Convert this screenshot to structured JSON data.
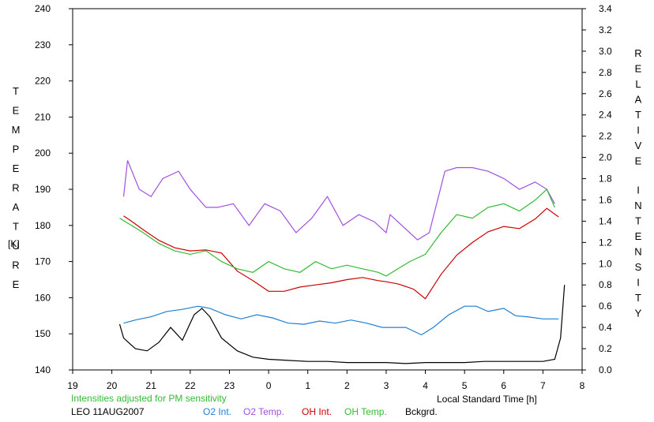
{
  "chart_data": {
    "type": "line",
    "left_axis_label": "TEMPERATURE",
    "left_axis_unit": "[K]",
    "right_axis_label": "RELATIVE INTENSITY",
    "xlabel": "Local Standard Time [h]",
    "note": "Intensities adjusted for PM sensitivity",
    "station_label": "LEO 11AUG2007",
    "xlim": [
      19,
      8
    ],
    "ylim_left": [
      140,
      240
    ],
    "ylim_right": [
      0.0,
      3.4
    ],
    "x_ticks": [
      "19",
      "20",
      "21",
      "22",
      "23",
      "0",
      "1",
      "2",
      "3",
      "4",
      "5",
      "6",
      "7",
      "8"
    ],
    "y_left_ticks": [
      "140",
      "150",
      "160",
      "170",
      "180",
      "190",
      "200",
      "210",
      "220",
      "230",
      "240"
    ],
    "y_right_ticks": [
      "0.0",
      "0.2",
      "0.4",
      "0.6",
      "0.8",
      "1.0",
      "1.2",
      "1.4",
      "1.6",
      "1.8",
      "2.0",
      "2.2",
      "2.4",
      "2.6",
      "2.8",
      "3.0",
      "3.2",
      "3.4"
    ],
    "series": [
      {
        "name": "O2 Int.",
        "axis": "right",
        "color": "#1f7fd4",
        "x": [
          20.3,
          20.6,
          21.0,
          21.4,
          21.8,
          22.2,
          22.5,
          22.9,
          23.3,
          23.7,
          24.1,
          24.5,
          24.9,
          25.3,
          25.7,
          26.1,
          26.5,
          26.9,
          27.1,
          27.5,
          27.9,
          28.2,
          28.6,
          29.0,
          29.3,
          29.6,
          30.0,
          30.3,
          30.6,
          31.0,
          31.4
        ],
        "y": [
          0.44,
          0.47,
          0.5,
          0.55,
          0.57,
          0.6,
          0.58,
          0.52,
          0.48,
          0.52,
          0.49,
          0.44,
          0.43,
          0.46,
          0.44,
          0.47,
          0.44,
          0.4,
          0.4,
          0.4,
          0.33,
          0.4,
          0.52,
          0.6,
          0.6,
          0.55,
          0.58,
          0.51,
          0.5,
          0.48,
          0.48
        ]
      },
      {
        "name": "O2 Temp.",
        "axis": "left",
        "color": "#a050e0",
        "x": [
          20.3,
          20.4,
          20.7,
          21.0,
          21.3,
          21.7,
          22.0,
          22.4,
          22.7,
          23.1,
          23.5,
          23.9,
          24.3,
          24.7,
          25.1,
          25.5,
          25.9,
          26.3,
          26.7,
          27.0,
          27.1,
          27.4,
          27.8,
          28.1,
          28.5,
          28.8,
          29.2,
          29.6,
          30.0,
          30.4,
          30.8,
          31.1,
          31.3
        ],
        "y": [
          188,
          198,
          190,
          188,
          193,
          195,
          190,
          185,
          185,
          186,
          180,
          186,
          184,
          178,
          182,
          188,
          180,
          183,
          181,
          178,
          183,
          180,
          176,
          178,
          195,
          196,
          196,
          195,
          193,
          190,
          192,
          190,
          186
        ]
      },
      {
        "name": "OH Int.",
        "axis": "right",
        "color": "#cc0000",
        "x": [
          20.3,
          20.5,
          20.8,
          21.2,
          21.6,
          22.0,
          22.4,
          22.8,
          23.2,
          23.6,
          24.0,
          24.4,
          24.8,
          25.2,
          25.6,
          26.0,
          26.4,
          26.8,
          27.0,
          27.3,
          27.7,
          28.0,
          28.4,
          28.8,
          29.2,
          29.6,
          30.0,
          30.4,
          30.8,
          31.1,
          31.4
        ],
        "y": [
          1.45,
          1.4,
          1.32,
          1.22,
          1.15,
          1.12,
          1.13,
          1.1,
          0.93,
          0.84,
          0.74,
          0.74,
          0.78,
          0.8,
          0.82,
          0.85,
          0.87,
          0.84,
          0.83,
          0.81,
          0.76,
          0.67,
          0.9,
          1.08,
          1.2,
          1.3,
          1.35,
          1.33,
          1.42,
          1.52,
          1.44
        ]
      },
      {
        "name": "OH Temp.",
        "axis": "left",
        "color": "#33bb33",
        "x": [
          20.2,
          20.5,
          20.8,
          21.2,
          21.6,
          22.0,
          22.4,
          22.8,
          23.2,
          23.6,
          24.0,
          24.4,
          24.8,
          25.2,
          25.6,
          26.0,
          26.4,
          26.8,
          27.0,
          27.3,
          27.6,
          28.0,
          28.4,
          28.8,
          29.2,
          29.6,
          30.0,
          30.4,
          30.8,
          31.1,
          31.3
        ],
        "y": [
          182,
          180,
          178,
          175,
          173,
          172,
          173,
          170,
          168,
          167,
          170,
          168,
          167,
          170,
          168,
          169,
          168,
          167,
          166,
          168,
          170,
          172,
          178,
          183,
          182,
          185,
          186,
          184,
          187,
          190,
          185
        ]
      },
      {
        "name": "Bckgrd.",
        "axis": "right",
        "color": "#000000",
        "x": [
          20.2,
          20.3,
          20.6,
          20.9,
          21.2,
          21.5,
          21.8,
          22.1,
          22.3,
          22.5,
          22.8,
          23.2,
          23.6,
          24.0,
          24.5,
          25.0,
          25.5,
          26.0,
          26.5,
          27.0,
          27.5,
          28.0,
          28.5,
          29.0,
          29.5,
          30.0,
          30.5,
          31.0,
          31.3,
          31.45,
          31.55
        ],
        "y": [
          0.43,
          0.3,
          0.2,
          0.18,
          0.26,
          0.4,
          0.28,
          0.52,
          0.58,
          0.5,
          0.3,
          0.18,
          0.12,
          0.1,
          0.09,
          0.08,
          0.08,
          0.07,
          0.07,
          0.07,
          0.06,
          0.07,
          0.07,
          0.07,
          0.08,
          0.08,
          0.08,
          0.08,
          0.1,
          0.3,
          0.8
        ]
      }
    ]
  }
}
